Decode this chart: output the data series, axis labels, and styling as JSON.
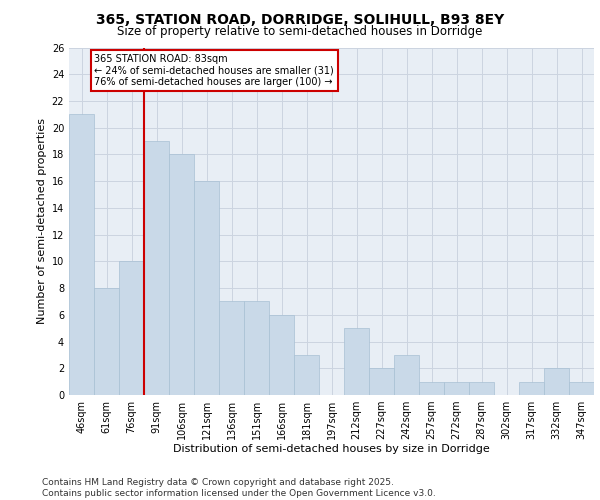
{
  "title": "365, STATION ROAD, DORRIDGE, SOLIHULL, B93 8EY",
  "subtitle": "Size of property relative to semi-detached houses in Dorridge",
  "xlabel": "Distribution of semi-detached houses by size in Dorridge",
  "ylabel": "Number of semi-detached properties",
  "categories": [
    "46sqm",
    "61sqm",
    "76sqm",
    "91sqm",
    "106sqm",
    "121sqm",
    "136sqm",
    "151sqm",
    "166sqm",
    "181sqm",
    "197sqm",
    "212sqm",
    "227sqm",
    "242sqm",
    "257sqm",
    "272sqm",
    "287sqm",
    "302sqm",
    "317sqm",
    "332sqm",
    "347sqm"
  ],
  "values": [
    21,
    8,
    10,
    19,
    18,
    16,
    7,
    7,
    6,
    3,
    0,
    5,
    2,
    3,
    1,
    1,
    1,
    0,
    1,
    2,
    1
  ],
  "bar_color": "#c9d9e8",
  "bar_edge_color": "#a8c0d4",
  "highlight_line_color": "#cc0000",
  "annotation_text": "365 STATION ROAD: 83sqm\n← 24% of semi-detached houses are smaller (31)\n76% of semi-detached houses are larger (100) →",
  "annotation_box_color": "#cc0000",
  "ylim": [
    0,
    26
  ],
  "yticks": [
    0,
    2,
    4,
    6,
    8,
    10,
    12,
    14,
    16,
    18,
    20,
    22,
    24,
    26
  ],
  "grid_color": "#ccd4e0",
  "background_color": "#e8eef5",
  "footer_text": "Contains HM Land Registry data © Crown copyright and database right 2025.\nContains public sector information licensed under the Open Government Licence v3.0.",
  "title_fontsize": 10,
  "subtitle_fontsize": 8.5,
  "xlabel_fontsize": 8,
  "ylabel_fontsize": 8,
  "tick_fontsize": 7,
  "annotation_fontsize": 7,
  "footer_fontsize": 6.5
}
